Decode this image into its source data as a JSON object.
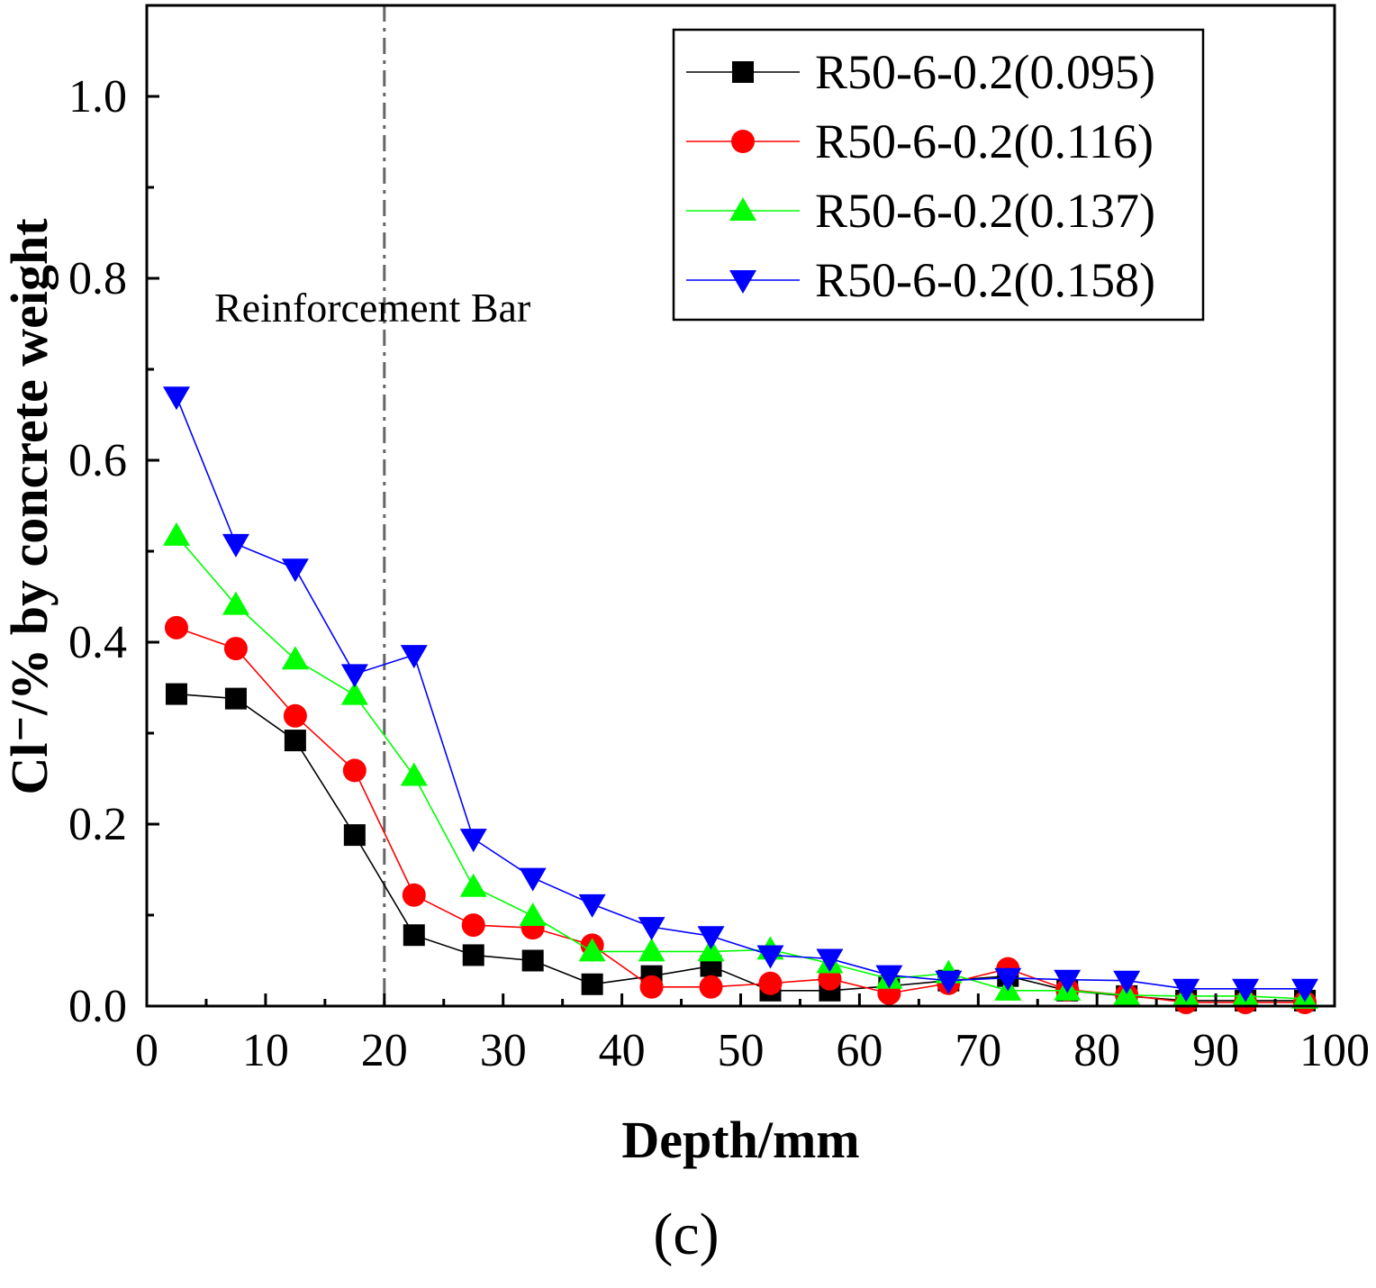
{
  "chart_data": {
    "type": "line",
    "xlabel": "Depth/mm",
    "ylabel": "Cl⁻/% by concrete weight",
    "xlim": [
      0,
      100
    ],
    "ylim": [
      0,
      1.1
    ],
    "xticks": [
      0,
      10,
      20,
      30,
      40,
      50,
      60,
      70,
      80,
      90,
      100
    ],
    "xtick_labels": [
      "0",
      "10",
      "20",
      "30",
      "40",
      "50",
      "60",
      "70",
      "80",
      "90",
      "100"
    ],
    "yticks": [
      0.0,
      0.2,
      0.4,
      0.6,
      0.8,
      1.0
    ],
    "ytick_labels": [
      "0.0",
      "0.2",
      "0.4",
      "0.6",
      "0.8",
      "1.0"
    ],
    "legend_position": "top-right",
    "grid": false,
    "x": [
      2.5,
      7.5,
      12.5,
      17.5,
      22.5,
      27.5,
      32.5,
      37.5,
      42.5,
      47.5,
      52.5,
      57.5,
      62.5,
      67.5,
      72.5,
      77.5,
      82.5,
      87.5,
      92.5,
      97.5
    ],
    "series": [
      {
        "name": "R50-6-0.2(0.095)",
        "color": "#000000",
        "marker": "square",
        "values": [
          0.343,
          0.338,
          0.292,
          0.188,
          0.078,
          0.056,
          0.05,
          0.024,
          0.033,
          0.044,
          0.017,
          0.017,
          0.022,
          0.028,
          0.033,
          0.017,
          0.011,
          0.006,
          0.006,
          0.006
        ]
      },
      {
        "name": "R50-6-0.2(0.116)",
        "color": "#ff0000",
        "marker": "circle",
        "values": [
          0.416,
          0.393,
          0.319,
          0.259,
          0.122,
          0.089,
          0.086,
          0.067,
          0.021,
          0.021,
          0.025,
          0.03,
          0.014,
          0.025,
          0.041,
          0.018,
          0.012,
          0.004,
          0.004,
          0.004
        ]
      },
      {
        "name": "R50-6-0.2(0.137)",
        "color": "#00ff00",
        "marker": "triangle-up",
        "values": [
          0.517,
          0.441,
          0.381,
          0.342,
          0.253,
          0.131,
          0.099,
          0.06,
          0.06,
          0.06,
          0.062,
          0.047,
          0.03,
          0.036,
          0.017,
          0.017,
          0.012,
          0.011,
          0.011,
          0.008
        ]
      },
      {
        "name": "R50-6-0.2(0.158)",
        "color": "#0000ff",
        "marker": "triangle-down",
        "values": [
          0.67,
          0.508,
          0.481,
          0.365,
          0.386,
          0.184,
          0.141,
          0.112,
          0.087,
          0.077,
          0.056,
          0.052,
          0.034,
          0.028,
          0.031,
          0.029,
          0.028,
          0.019,
          0.019,
          0.019
        ]
      }
    ],
    "reference_line": {
      "x": 20,
      "style": "dash-dot",
      "color": "#666666"
    },
    "annotations": [
      "Reinforcement Bar"
    ],
    "panel_label": "(c)"
  }
}
